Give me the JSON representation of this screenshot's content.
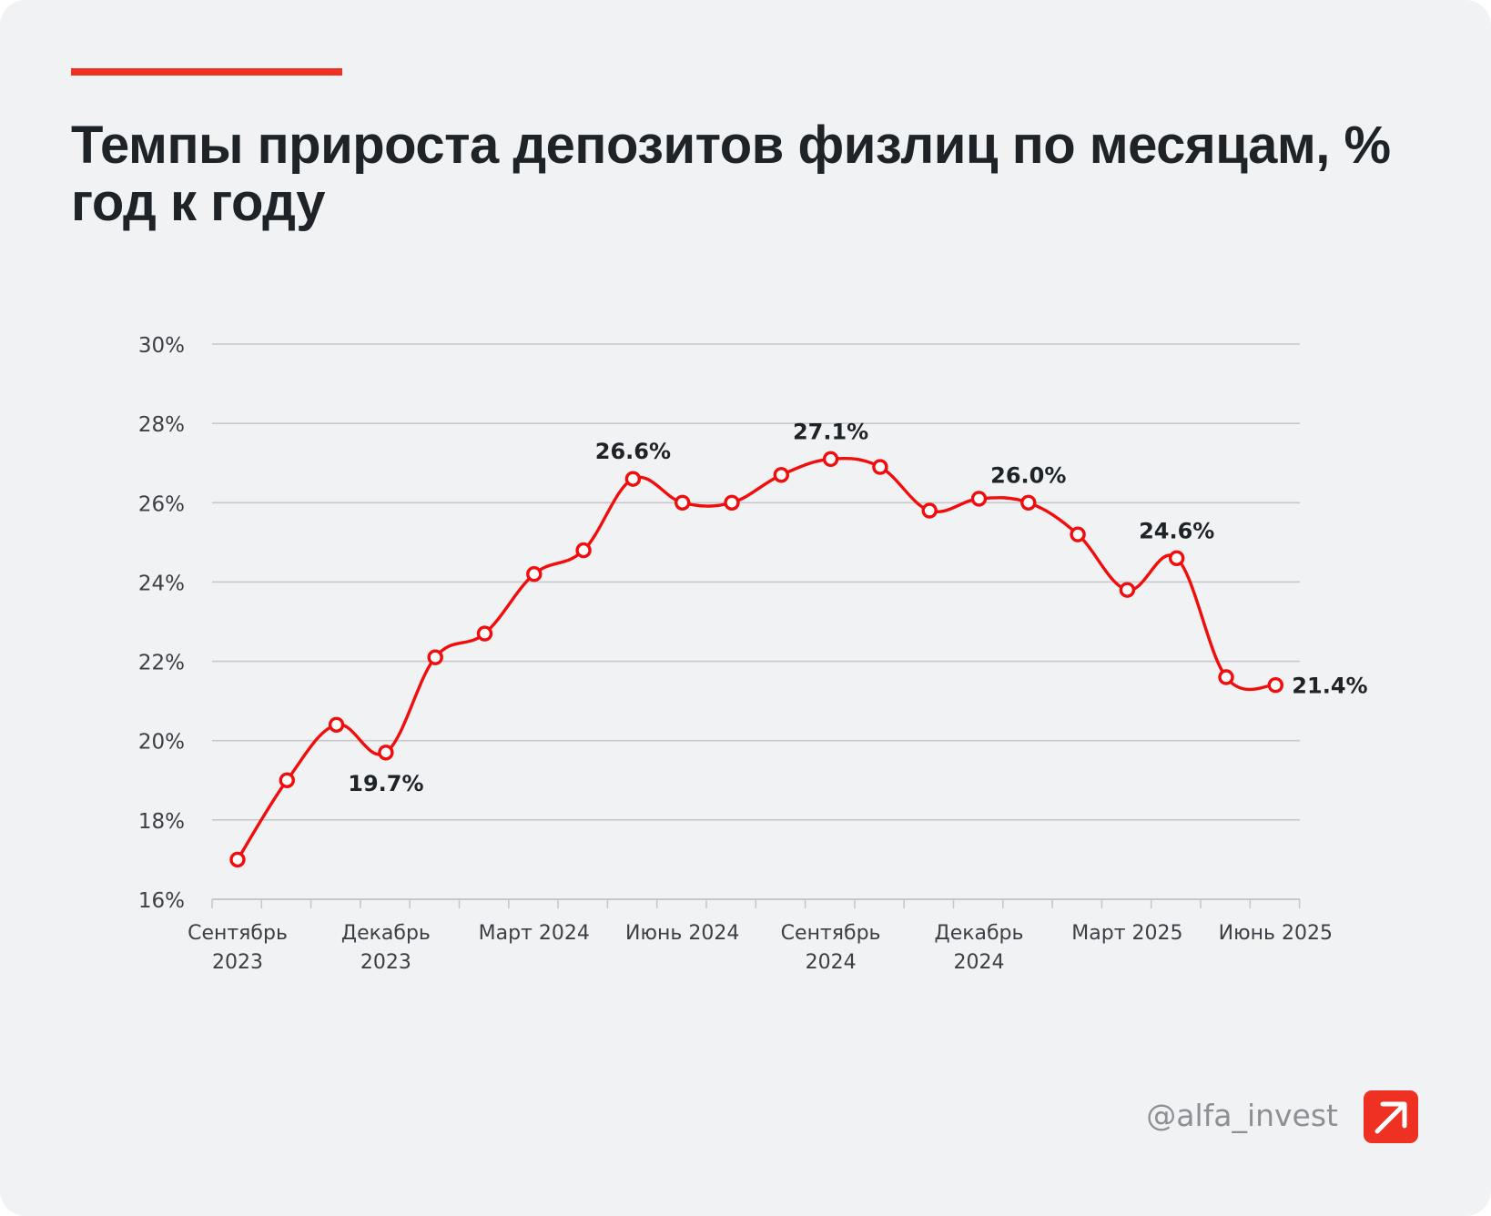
{
  "title": "Темпы прироста депозитов физлиц по месяцам, % год к году",
  "handle": "@alfa_invest",
  "colors": {
    "accent": "#ef3124",
    "line": "#f20d0d",
    "grid": "#c6c8cc",
    "text": "#1e2328",
    "muted": "#3c4046"
  },
  "icons": {
    "logo": "alfa-arrow-logo-icon"
  },
  "chart_data": {
    "type": "line",
    "title": "Темпы прироста депозитов физлиц по месяцам, % год к году",
    "xlabel": "",
    "ylabel": "",
    "ylim": [
      16,
      30
    ],
    "yticks": [
      16,
      18,
      20,
      22,
      24,
      26,
      28,
      30
    ],
    "ytick_labels": [
      "16%",
      "18%",
      "20%",
      "22%",
      "24%",
      "26%",
      "28%",
      "30%"
    ],
    "grid": true,
    "x": [
      "2023-09",
      "2023-10",
      "2023-11",
      "2023-12",
      "2024-01",
      "2024-02",
      "2024-03",
      "2024-04",
      "2024-05",
      "2024-06",
      "2024-07",
      "2024-08",
      "2024-09",
      "2024-10",
      "2024-11",
      "2024-12",
      "2025-01",
      "2025-02",
      "2025-03",
      "2025-04",
      "2025-05",
      "2025-06"
    ],
    "series": [
      {
        "name": "",
        "values": [
          17.0,
          19.0,
          20.4,
          19.7,
          22.1,
          22.7,
          24.2,
          24.8,
          26.6,
          26.0,
          26.0,
          26.7,
          27.1,
          26.9,
          25.8,
          26.1,
          26.0,
          25.2,
          23.8,
          24.6,
          21.6,
          21.4
        ]
      }
    ],
    "x_tick_labels": [
      {
        "index": 0,
        "lines": [
          "Сентябрь",
          "2023"
        ]
      },
      {
        "index": 3,
        "lines": [
          "Декабрь",
          "2023"
        ]
      },
      {
        "index": 6,
        "lines": [
          "Март 2024"
        ]
      },
      {
        "index": 9,
        "lines": [
          "Июнь 2024"
        ]
      },
      {
        "index": 12,
        "lines": [
          "Сентябрь",
          "2024"
        ]
      },
      {
        "index": 15,
        "lines": [
          "Декабрь",
          "2024"
        ]
      },
      {
        "index": 18,
        "lines": [
          "Март 2025"
        ]
      },
      {
        "index": 21,
        "lines": [
          "Июнь 2025"
        ]
      }
    ],
    "annotations": [
      {
        "index": 3,
        "text": "19.7%",
        "position": "below"
      },
      {
        "index": 8,
        "text": "26.6%",
        "position": "above"
      },
      {
        "index": 12,
        "text": "27.1%",
        "position": "above"
      },
      {
        "index": 16,
        "text": "26.0%",
        "position": "above"
      },
      {
        "index": 19,
        "text": "24.6%",
        "position": "above"
      },
      {
        "index": 21,
        "text": "21.4%",
        "position": "right"
      }
    ]
  }
}
